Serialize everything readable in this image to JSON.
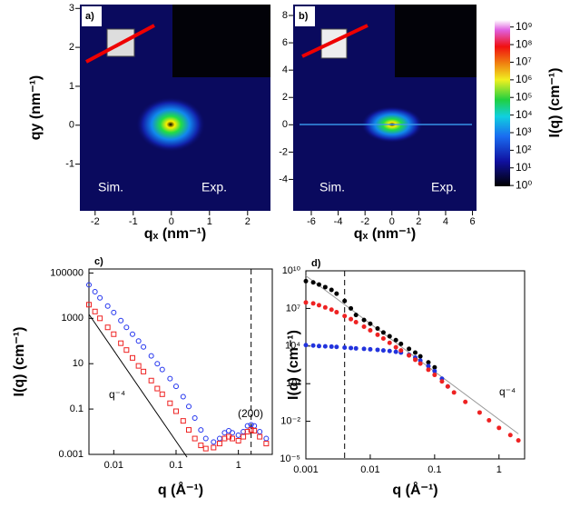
{
  "chart_data": [
    {
      "type": "image",
      "panel": "a)",
      "xlabel": "qₓ (nm⁻¹)",
      "ylabel": "qy (nm⁻¹)",
      "xlim": [
        -2.4,
        2.6
      ],
      "ylim": [
        -2.2,
        3.1
      ],
      "xticks": [
        -2,
        -1,
        0,
        1,
        2
      ],
      "yticks": [
        -1,
        0,
        1,
        2,
        3
      ],
      "annotations": [
        "Sim.",
        "Exp."
      ]
    },
    {
      "type": "image",
      "panel": "b)",
      "xlabel": "qₓ (nm⁻¹)",
      "xlim": [
        -7.35,
        6.3
      ],
      "ylim": [
        -6.3,
        8.8
      ],
      "xticks": [
        -6,
        -4,
        -2,
        0,
        2,
        4,
        6
      ],
      "yticks": [
        -4,
        -2,
        0,
        2,
        4,
        6,
        8
      ],
      "annotations": [
        "Sim.",
        "Exp."
      ],
      "colorbar": {
        "label": "I(q) (cm⁻¹)",
        "lim": [
          0.9,
          2500000000
        ],
        "log": true,
        "ticks": [
          {
            "value": 1,
            "label": "10⁰"
          },
          {
            "value": 10,
            "label": "10¹"
          },
          {
            "value": 100,
            "label": "10²"
          },
          {
            "value": 1000,
            "label": "10³"
          },
          {
            "value": 10000,
            "label": "10⁴"
          },
          {
            "value": 100000,
            "label": "10⁵"
          },
          {
            "value": 1000000,
            "label": "10⁶"
          },
          {
            "value": 10000000,
            "label": "10⁷"
          },
          {
            "value": 100000000,
            "label": "10⁸"
          },
          {
            "value": 1000000000,
            "label": "10⁹"
          }
        ]
      }
    },
    {
      "type": "scatter",
      "panel": "c)",
      "xlabel": "q (Å⁻¹)",
      "ylabel": "I(q) (cm⁻¹)",
      "xscale": "log",
      "yscale": "log",
      "xlim": [
        0.004,
        3.5
      ],
      "ylim": [
        0.001,
        150000
      ],
      "xticks": [
        0.01,
        0.1,
        1
      ],
      "yticks": [
        0.001,
        0.1,
        10,
        1000,
        100000
      ],
      "x": [
        0.004,
        0.005,
        0.006,
        0.008,
        0.01,
        0.013,
        0.016,
        0.02,
        0.025,
        0.03,
        0.04,
        0.05,
        0.06,
        0.08,
        0.1,
        0.13,
        0.16,
        0.2,
        0.25,
        0.3,
        0.4,
        0.5,
        0.6,
        0.7,
        0.8,
        1.0,
        1.2,
        1.4,
        1.6,
        1.8,
        2.2,
        2.8
      ],
      "series": [
        {
          "color": "#2233ee",
          "marker": "circle",
          "values": [
            30000,
            15000,
            8000,
            3500,
            1800,
            800,
            400,
            200,
            100,
            55,
            22,
            10,
            5.5,
            2.2,
            1.0,
            0.35,
            0.13,
            0.04,
            0.012,
            0.005,
            0.0035,
            0.005,
            0.009,
            0.011,
            0.009,
            0.007,
            0.01,
            0.018,
            0.02,
            0.018,
            0.01,
            0.005
          ]
        },
        {
          "color": "#ee2222",
          "marker": "square",
          "values": [
            4000,
            2000,
            1000,
            400,
            200,
            80,
            40,
            18,
            8,
            4.5,
            1.8,
            0.8,
            0.45,
            0.18,
            0.08,
            0.03,
            0.012,
            0.005,
            0.0025,
            0.0018,
            0.002,
            0.003,
            0.005,
            0.006,
            0.005,
            0.004,
            0.006,
            0.01,
            0.012,
            0.011,
            0.006,
            0.003
          ]
        }
      ],
      "reflines": [
        {
          "color": "#000000",
          "x": [
            0.004,
            0.15
          ],
          "values": [
            1500,
            0.00075
          ]
        }
      ],
      "vlines": [
        1.6
      ],
      "annotations": [
        "q⁻⁴",
        "(200)"
      ]
    },
    {
      "type": "scatter",
      "panel": "d)",
      "xlabel": "q (Å⁻¹)",
      "ylabel": "I(q) (cm⁻¹)",
      "xscale": "log",
      "yscale": "log",
      "xlim": [
        0.001,
        2.5
      ],
      "ylim": [
        1e-05,
        10000000000
      ],
      "xticks": [
        0.001,
        0.01,
        0.1,
        1
      ],
      "yticks": [
        {
          "value": 1e-05,
          "label": "10⁻⁵"
        },
        {
          "value": 0.01,
          "label": "10⁻²"
        },
        {
          "value": 10,
          "label": "10¹"
        },
        {
          "value": 10000,
          "label": "10⁴"
        },
        {
          "value": 10000000,
          "label": "10⁷"
        },
        {
          "value": 10000000000,
          "label": "10¹⁰"
        }
      ],
      "x": [
        0.001,
        0.0013,
        0.0016,
        0.002,
        0.0025,
        0.003,
        0.004,
        0.005,
        0.006,
        0.008,
        0.01,
        0.013,
        0.016,
        0.02,
        0.025,
        0.03,
        0.04,
        0.05,
        0.06,
        0.08,
        0.1,
        0.13,
        0.16,
        0.2,
        0.3,
        0.5,
        0.7,
        1,
        1.5,
        2
      ],
      "series": [
        {
          "color": "#000000",
          "marker": "dot",
          "values": [
            1500000000,
            1200000000,
            800000000,
            500000000,
            300000000,
            150000000,
            40000000,
            10000000,
            3000000,
            1200000,
            600000,
            250000,
            120000,
            60000,
            30000,
            15000,
            6000,
            3000,
            1500,
            500,
            200,
            null,
            null,
            null,
            null,
            null,
            null,
            null,
            null,
            null
          ]
        },
        {
          "color": "#2233dd",
          "marker": "dot",
          "values": [
            12000,
            11000,
            10000,
            9500,
            9000,
            8500,
            7500,
            7000,
            6500,
            6000,
            5500,
            5000,
            4500,
            4000,
            3500,
            3000,
            2000,
            1200,
            700,
            250,
            100,
            25,
            6,
            null,
            null,
            null,
            null,
            null,
            null,
            null
          ]
        },
        {
          "color": "#ee2222",
          "marker": "dot",
          "values": [
            30000000,
            25000000,
            18000000,
            12000000,
            8000000,
            5000000,
            2500000,
            1400000,
            800000,
            350000,
            180000,
            80000,
            40000,
            18000,
            8000,
            4500,
            1800,
            800,
            400,
            130,
            50,
            15,
            6,
            2,
            0.35,
            0.05,
            0.012,
            0.003,
            0.0008,
            0.0003
          ]
        }
      ],
      "reflines": [
        {
          "color": "#999999",
          "x": [
            0.001,
            2
          ],
          "values": [
            4000000000,
            0.001
          ]
        }
      ],
      "vlines": [
        0.004
      ],
      "annotations": [
        "q⁻⁴"
      ]
    }
  ]
}
